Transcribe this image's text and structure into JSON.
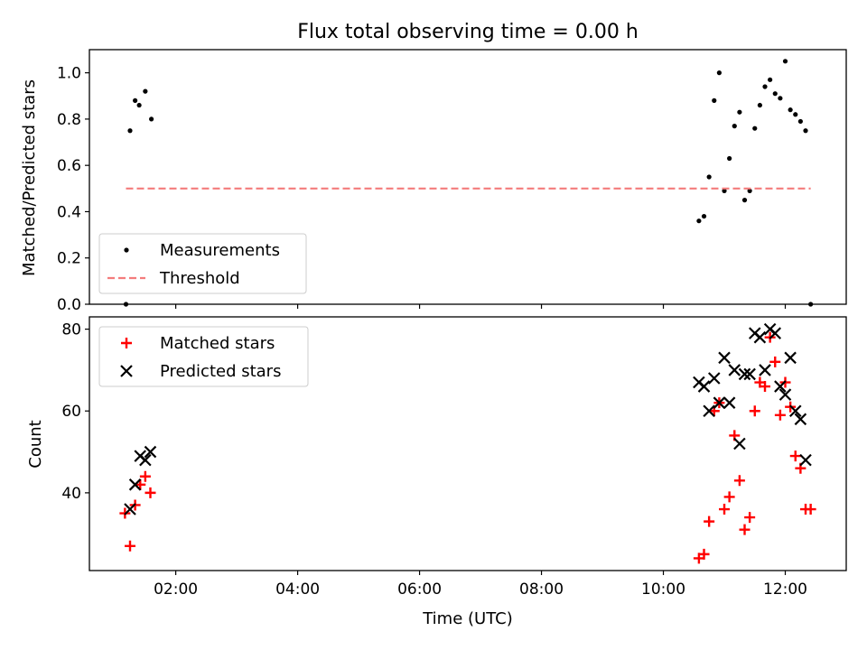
{
  "chart_data": [
    {
      "type": "scatter",
      "title": "Flux total observing time = 0.00 h",
      "xlabel": "",
      "ylabel": "Matched/Predicted stars",
      "xlim": [
        "00:35",
        "13:00"
      ],
      "ylim": [
        0,
        1.1
      ],
      "yticks": [
        "0.0",
        "0.2",
        "0.4",
        "0.6",
        "0.8",
        "1.0"
      ],
      "grid": false,
      "legend_position": "lower-left",
      "series": [
        {
          "name": "Measurements",
          "marker": "dot",
          "color": "#000000",
          "points": [
            {
              "x": "01:11",
              "y": 0.0
            },
            {
              "x": "01:15",
              "y": 0.75
            },
            {
              "x": "01:20",
              "y": 0.88
            },
            {
              "x": "01:24",
              "y": 0.86
            },
            {
              "x": "01:30",
              "y": 0.92
            },
            {
              "x": "01:36",
              "y": 0.8
            },
            {
              "x": "10:35",
              "y": 0.36
            },
            {
              "x": "10:40",
              "y": 0.38
            },
            {
              "x": "10:45",
              "y": 0.55
            },
            {
              "x": "10:50",
              "y": 0.88
            },
            {
              "x": "10:55",
              "y": 1.0
            },
            {
              "x": "11:00",
              "y": 0.49
            },
            {
              "x": "11:05",
              "y": 0.63
            },
            {
              "x": "11:10",
              "y": 0.77
            },
            {
              "x": "11:15",
              "y": 0.83
            },
            {
              "x": "11:20",
              "y": 0.45
            },
            {
              "x": "11:25",
              "y": 0.49
            },
            {
              "x": "11:30",
              "y": 0.76
            },
            {
              "x": "11:35",
              "y": 0.86
            },
            {
              "x": "11:40",
              "y": 0.94
            },
            {
              "x": "11:45",
              "y": 0.97
            },
            {
              "x": "11:50",
              "y": 0.91
            },
            {
              "x": "11:55",
              "y": 0.89
            },
            {
              "x": "12:00",
              "y": 1.05
            },
            {
              "x": "12:05",
              "y": 0.84
            },
            {
              "x": "12:10",
              "y": 0.82
            },
            {
              "x": "12:15",
              "y": 0.79
            },
            {
              "x": "12:20",
              "y": 0.75
            },
            {
              "x": "12:25",
              "y": 0.0
            }
          ]
        },
        {
          "name": "Threshold",
          "style": "dashed-line",
          "color": "#f47c7c",
          "points": [
            {
              "x": "01:11",
              "y": 0.5
            },
            {
              "x": "12:25",
              "y": 0.5
            }
          ]
        }
      ]
    },
    {
      "type": "scatter",
      "title": "",
      "xlabel": "Time (UTC)",
      "ylabel": "Count",
      "xlim": [
        "00:35",
        "13:00"
      ],
      "ylim": [
        21,
        83
      ],
      "yticks": [
        "40",
        "60",
        "80"
      ],
      "xticks": [
        "02:00",
        "04:00",
        "06:00",
        "08:00",
        "10:00",
        "12:00"
      ],
      "grid": false,
      "legend_position": "upper-left",
      "series": [
        {
          "name": "Matched stars",
          "marker": "plus",
          "color": "#ff0000",
          "points": [
            {
              "x": "01:10",
              "y": 35
            },
            {
              "x": "01:15",
              "y": 27
            },
            {
              "x": "01:20",
              "y": 37
            },
            {
              "x": "01:25",
              "y": 42
            },
            {
              "x": "01:30",
              "y": 44
            },
            {
              "x": "01:35",
              "y": 40
            },
            {
              "x": "10:35",
              "y": 24
            },
            {
              "x": "10:40",
              "y": 25
            },
            {
              "x": "10:45",
              "y": 33
            },
            {
              "x": "10:50",
              "y": 60
            },
            {
              "x": "10:55",
              "y": 62
            },
            {
              "x": "11:00",
              "y": 36
            },
            {
              "x": "11:05",
              "y": 39
            },
            {
              "x": "11:10",
              "y": 54
            },
            {
              "x": "11:15",
              "y": 43
            },
            {
              "x": "11:20",
              "y": 31
            },
            {
              "x": "11:25",
              "y": 34
            },
            {
              "x": "11:30",
              "y": 60
            },
            {
              "x": "11:35",
              "y": 67
            },
            {
              "x": "11:40",
              "y": 66
            },
            {
              "x": "11:45",
              "y": 78
            },
            {
              "x": "11:50",
              "y": 72
            },
            {
              "x": "11:55",
              "y": 59
            },
            {
              "x": "12:00",
              "y": 67
            },
            {
              "x": "12:05",
              "y": 61
            },
            {
              "x": "12:10",
              "y": 49
            },
            {
              "x": "12:15",
              "y": 46
            },
            {
              "x": "12:20",
              "y": 36
            },
            {
              "x": "12:25",
              "y": 36
            }
          ]
        },
        {
          "name": "Predicted stars",
          "marker": "x",
          "color": "#000000",
          "points": [
            {
              "x": "01:15",
              "y": 36
            },
            {
              "x": "01:20",
              "y": 42
            },
            {
              "x": "01:25",
              "y": 49
            },
            {
              "x": "01:30",
              "y": 48
            },
            {
              "x": "01:35",
              "y": 50
            },
            {
              "x": "10:35",
              "y": 67
            },
            {
              "x": "10:40",
              "y": 66
            },
            {
              "x": "10:45",
              "y": 60
            },
            {
              "x": "10:50",
              "y": 68
            },
            {
              "x": "10:55",
              "y": 62
            },
            {
              "x": "11:00",
              "y": 73
            },
            {
              "x": "11:05",
              "y": 62
            },
            {
              "x": "11:10",
              "y": 70
            },
            {
              "x": "11:15",
              "y": 52
            },
            {
              "x": "11:20",
              "y": 69
            },
            {
              "x": "11:25",
              "y": 69
            },
            {
              "x": "11:30",
              "y": 79
            },
            {
              "x": "11:35",
              "y": 78
            },
            {
              "x": "11:40",
              "y": 70
            },
            {
              "x": "11:45",
              "y": 80
            },
            {
              "x": "11:50",
              "y": 79
            },
            {
              "x": "11:55",
              "y": 66
            },
            {
              "x": "12:00",
              "y": 64
            },
            {
              "x": "12:05",
              "y": 73
            },
            {
              "x": "12:10",
              "y": 60
            },
            {
              "x": "12:15",
              "y": 58
            },
            {
              "x": "12:20",
              "y": 48
            }
          ]
        }
      ]
    }
  ]
}
